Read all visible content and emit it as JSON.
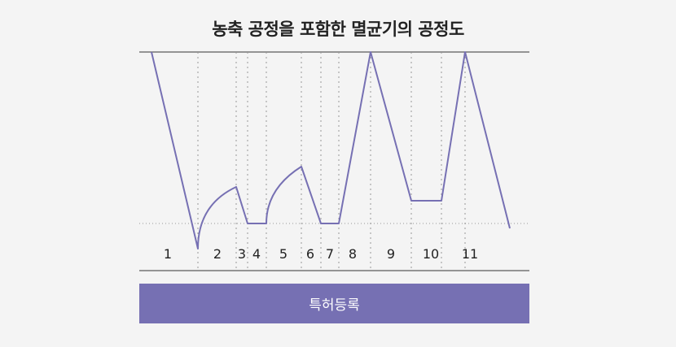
{
  "title": "농축 공정을 포함한 멸균기의 공정도",
  "steps": [
    "1",
    "2",
    "3",
    "4",
    "5",
    "6",
    "7",
    "8",
    "9",
    "10",
    "11"
  ],
  "banner": "특허등록",
  "colors": {
    "curve": "#7670b3",
    "banner_bg": "#7670b3",
    "banner_text": "#ffffff",
    "guide": "#999999",
    "axis": "#333333",
    "background": "#f4f4f4"
  }
}
